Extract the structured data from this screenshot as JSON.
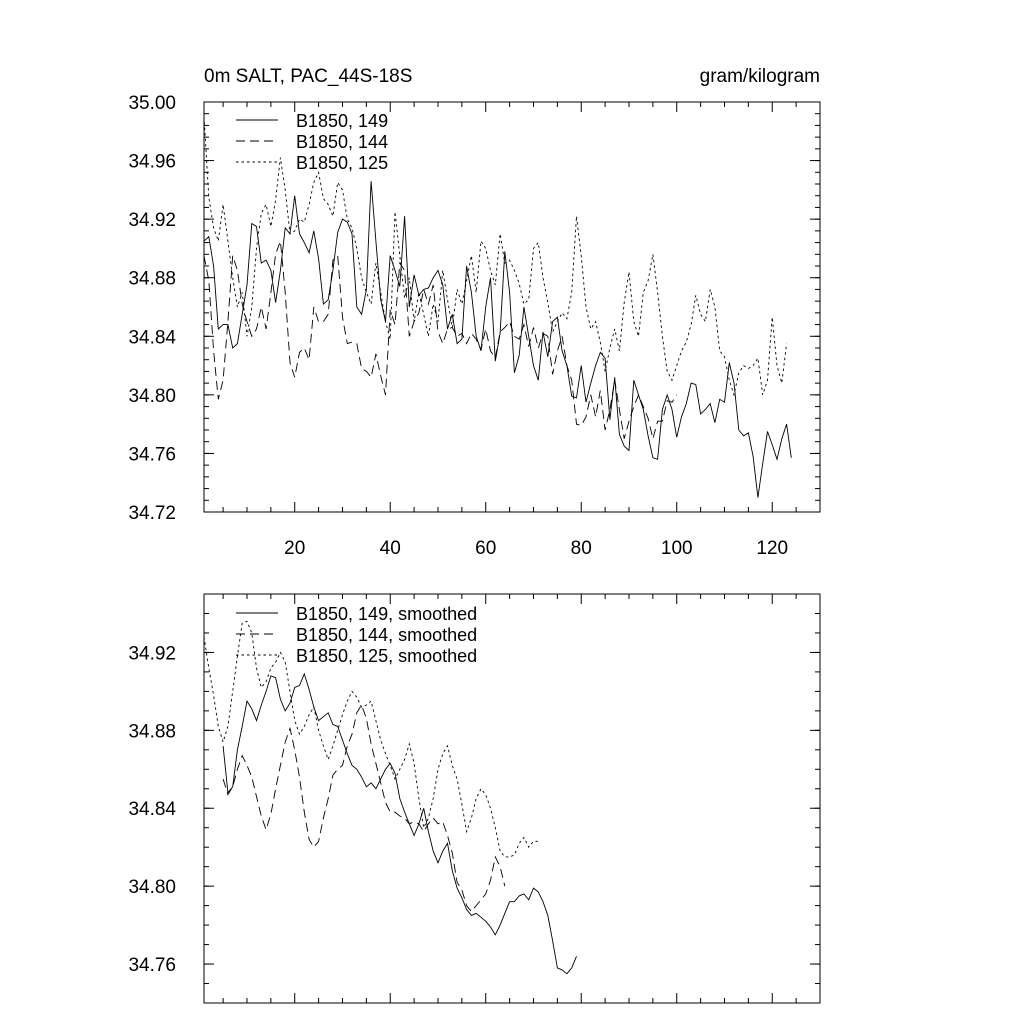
{
  "chart_data": [
    {
      "type": "line",
      "title_left": "0m SALT, PAC_44S-18S",
      "title_right": "gram/kilogram",
      "xlim": [
        1,
        130
      ],
      "ylim": [
        34.72,
        35.0
      ],
      "x_ticks": [
        20,
        40,
        60,
        80,
        100,
        120
      ],
      "y_ticks": [
        "34.72",
        "34.76",
        "34.80",
        "34.84",
        "34.88",
        "34.92",
        "34.96",
        "35.00"
      ],
      "legend_position": "top-left",
      "series": [
        {
          "name": "B1850, 149",
          "dash": "solid",
          "x_start": 1,
          "values": [
            34.905,
            34.908,
            34.888,
            34.845,
            34.848,
            34.848,
            34.832,
            34.835,
            34.855,
            34.875,
            34.917,
            34.915,
            34.89,
            34.892,
            34.885,
            34.863,
            34.885,
            34.914,
            34.91,
            34.936,
            34.91,
            34.904,
            34.897,
            34.912,
            34.893,
            34.862,
            34.865,
            34.885,
            34.911,
            34.92,
            34.918,
            34.91,
            34.86,
            34.855,
            34.872,
            34.946,
            34.905,
            34.865,
            34.85,
            34.895,
            34.885,
            34.874,
            34.922,
            34.86,
            34.882,
            34.868,
            34.872,
            34.873,
            34.88,
            34.885,
            34.875,
            34.845,
            34.855,
            34.835,
            34.838,
            34.888,
            34.87,
            34.84,
            34.83,
            34.86,
            34.88,
            34.823,
            34.842,
            34.898,
            34.87,
            34.815,
            34.827,
            34.86,
            34.84,
            34.82,
            34.81,
            34.843,
            34.826,
            34.85,
            34.853,
            34.83,
            34.82,
            34.799,
            34.798,
            34.82,
            34.795,
            34.808,
            34.82,
            34.829,
            34.825,
            34.783,
            34.812,
            34.773,
            34.765,
            34.762,
            34.81,
            34.8,
            34.79,
            34.772,
            34.757,
            34.756,
            34.79,
            34.8,
            34.79,
            34.771,
            34.785,
            34.794,
            34.808,
            34.807,
            34.787,
            34.79,
            34.794,
            34.781,
            34.797,
            34.795,
            34.822,
            34.808,
            34.776,
            34.772,
            34.774,
            34.758,
            34.73,
            34.753,
            34.775,
            34.766,
            34.756,
            34.77,
            34.78,
            34.757
          ]
        },
        {
          "name": "B1850, 144",
          "dash": "long",
          "x_start": 1,
          "values": [
            34.895,
            34.878,
            34.83,
            34.797,
            34.81,
            34.85,
            34.895,
            34.885,
            34.862,
            34.85,
            34.84,
            34.845,
            34.86,
            34.845,
            34.87,
            34.896,
            34.905,
            34.87,
            34.822,
            34.812,
            34.829,
            34.832,
            34.824,
            34.86,
            34.85,
            34.85,
            34.855,
            34.892,
            34.895,
            34.853,
            34.835,
            34.836,
            34.835,
            34.818,
            34.816,
            34.812,
            34.828,
            34.813,
            34.8,
            34.858,
            34.848,
            34.89,
            34.885,
            34.84,
            34.85,
            34.856,
            34.872,
            34.862,
            34.875,
            34.843,
            34.835,
            34.845,
            34.846,
            34.84,
            34.842,
            34.835,
            34.842,
            34.838,
            34.831,
            34.845,
            34.83,
            34.825,
            34.843,
            34.846,
            34.85,
            34.84,
            34.838,
            34.848,
            34.833,
            34.846,
            34.832,
            34.842,
            34.84,
            34.814,
            34.83,
            34.84,
            34.82,
            34.81,
            34.78,
            34.779,
            34.785,
            34.8,
            34.785,
            34.803,
            34.776,
            34.79,
            34.81,
            34.79,
            34.77,
            34.782,
            34.792,
            34.8,
            34.792,
            34.784,
            34.77,
            34.782,
            34.782,
            34.796,
            34.795,
            34.8
          ]
        },
        {
          "name": "B1850, 125",
          "dash": "short",
          "x_start": 1,
          "values": [
            34.99,
            34.935,
            34.914,
            34.905,
            34.93,
            34.905,
            34.88,
            34.86,
            34.87,
            34.84,
            34.86,
            34.9,
            34.924,
            34.93,
            34.915,
            34.933,
            34.962,
            34.94,
            34.91,
            34.912,
            34.92,
            34.918,
            34.93,
            34.945,
            34.952,
            34.934,
            34.93,
            34.922,
            34.945,
            34.94,
            34.92,
            34.914,
            34.9,
            34.88,
            34.87,
            34.862,
            34.89,
            34.87,
            34.85,
            34.838,
            34.925,
            34.895,
            34.866,
            34.88,
            34.85,
            34.87,
            34.855,
            34.84,
            34.862,
            34.85,
            34.885,
            34.865,
            34.846,
            34.872,
            34.862,
            34.878,
            34.895,
            34.87,
            34.905,
            34.9,
            34.885,
            34.875,
            34.91,
            34.89,
            34.892,
            34.885,
            34.876,
            34.862,
            34.865,
            34.9,
            34.904,
            34.88,
            34.863,
            34.843,
            34.85,
            34.856,
            34.852,
            34.87,
            34.922,
            34.895,
            34.86,
            34.845,
            34.85,
            34.836,
            34.816,
            34.832,
            34.845,
            34.83,
            34.863,
            34.884,
            34.85,
            34.84,
            34.87,
            34.878,
            34.896,
            34.87,
            34.84,
            34.816,
            34.81,
            34.82,
            34.83,
            34.836,
            34.848,
            34.868,
            34.855,
            34.85,
            34.872,
            34.86,
            34.83,
            34.826,
            34.81,
            34.8,
            34.815,
            34.82,
            34.818,
            34.82,
            34.825,
            34.8,
            34.81,
            34.853,
            34.82,
            34.808,
            34.835
          ]
        }
      ]
    },
    {
      "type": "line",
      "xlim": [
        1,
        130
      ],
      "ylim": [
        34.74,
        34.95
      ],
      "x_ticks": [
        20,
        40,
        60,
        80,
        100,
        120
      ],
      "y_ticks": [
        "34.76",
        "34.80",
        "34.84",
        "34.88",
        "34.92"
      ],
      "legend_position": "top-left",
      "series": [
        {
          "name": "B1850, 149, smoothed",
          "dash": "solid",
          "x_start": 5,
          "values": [
            34.872,
            34.848,
            34.851,
            34.87,
            34.882,
            34.895,
            34.891,
            34.885,
            34.893,
            34.9,
            34.908,
            34.907,
            34.896,
            34.89,
            34.894,
            34.902,
            34.903,
            34.909,
            34.901,
            34.892,
            34.885,
            34.887,
            34.889,
            34.883,
            34.882,
            34.875,
            34.868,
            34.862,
            34.86,
            34.856,
            34.851,
            34.853,
            34.85,
            34.855,
            34.86,
            34.863,
            34.858,
            34.845,
            34.838,
            34.832,
            34.826,
            34.832,
            34.84,
            34.828,
            34.818,
            34.812,
            34.818,
            34.822,
            34.808,
            34.799,
            34.794,
            34.788,
            34.785,
            34.786,
            34.784,
            34.782,
            34.779,
            34.775,
            34.78,
            34.786,
            34.792,
            34.792,
            34.795,
            34.796,
            34.793,
            34.799,
            34.797,
            34.792,
            34.785,
            34.772,
            34.758,
            34.757,
            34.755,
            34.758,
            34.764
          ]
        },
        {
          "name": "B1850, 144, smoothed",
          "dash": "long",
          "x_start": 5,
          "values": [
            34.855,
            34.847,
            34.851,
            34.86,
            34.867,
            34.862,
            34.856,
            34.846,
            34.836,
            34.829,
            34.837,
            34.85,
            34.862,
            34.874,
            34.881,
            34.87,
            34.856,
            34.838,
            34.824,
            34.82,
            34.823,
            34.835,
            34.845,
            34.857,
            34.86,
            34.862,
            34.872,
            34.878,
            34.889,
            34.893,
            34.886,
            34.873,
            34.863,
            34.853,
            34.843,
            34.838,
            34.838,
            34.836,
            34.835,
            34.832,
            34.833,
            34.832,
            34.828,
            34.832,
            34.835,
            34.832,
            34.833,
            34.826,
            34.817,
            34.802,
            34.798,
            34.79,
            34.787,
            34.79,
            34.793,
            34.796,
            34.803,
            34.815,
            34.81,
            34.8
          ]
        },
        {
          "name": "B1850, 125, smoothed",
          "dash": "short",
          "x_start": 1,
          "values": [
            34.928,
            34.912,
            34.898,
            34.882,
            34.874,
            34.882,
            34.9,
            34.918,
            34.935,
            34.936,
            34.93,
            34.912,
            34.902,
            34.905,
            34.912,
            34.915,
            34.92,
            34.915,
            34.9,
            34.885,
            34.878,
            34.882,
            34.888,
            34.892,
            34.88,
            34.872,
            34.865,
            34.872,
            34.88,
            34.888,
            34.895,
            34.9,
            34.897,
            34.892,
            34.893,
            34.895,
            34.885,
            34.875,
            34.868,
            34.862,
            34.855,
            34.86,
            34.865,
            34.873,
            34.863,
            34.845,
            34.83,
            34.835,
            34.845,
            34.86,
            34.868,
            34.872,
            34.862,
            34.855,
            34.842,
            34.828,
            34.835,
            34.845,
            34.85,
            34.847,
            34.84,
            34.83,
            34.818,
            34.815,
            34.815,
            34.816,
            34.822,
            34.825,
            34.82,
            34.823,
            34.823
          ]
        }
      ]
    }
  ]
}
